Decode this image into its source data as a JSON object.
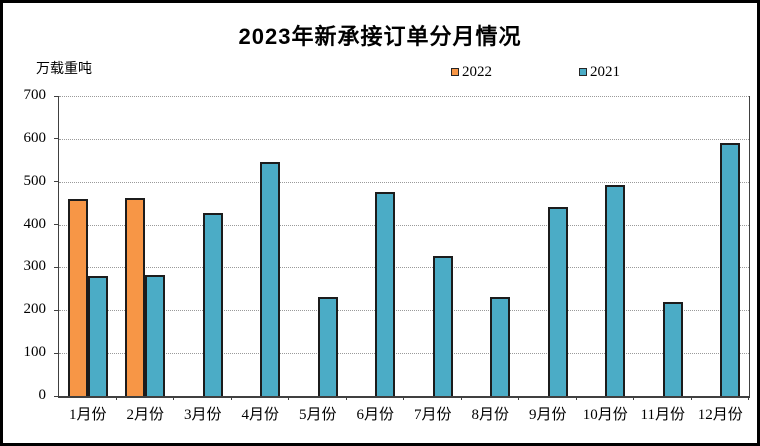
{
  "title": "2023年新承接订单分月情况",
  "y_unit_label": "万载重吨",
  "chart_data": {
    "type": "bar",
    "title": "2023年新承接订单分月情况",
    "ylabel": "万载重吨",
    "xlabel": "",
    "categories": [
      "1月份",
      "2月份",
      "3月份",
      "4月份",
      "5月份",
      "6月份",
      "7月份",
      "8月份",
      "9月份",
      "10月份",
      "11月份",
      "12月份"
    ],
    "series": [
      {
        "name": "2022",
        "color": "#F79646",
        "values": [
          460,
          462,
          null,
          null,
          null,
          null,
          null,
          null,
          null,
          null,
          null,
          null
        ]
      },
      {
        "name": "2021",
        "color": "#4BACC6",
        "values": [
          280,
          283,
          428,
          547,
          230,
          477,
          326,
          232,
          440,
          493,
          220,
          591
        ]
      }
    ],
    "ylim": [
      0,
      700
    ],
    "ytick_interval": 100,
    "grid": "horizontal-dotted",
    "legend_position": "top-center",
    "colors": {
      "bar_outline": "#1c1c1c",
      "axis_line": "#404040",
      "gridline": "#9a9a9a",
      "background": "#ffffff",
      "outer_border": "#000000"
    }
  }
}
